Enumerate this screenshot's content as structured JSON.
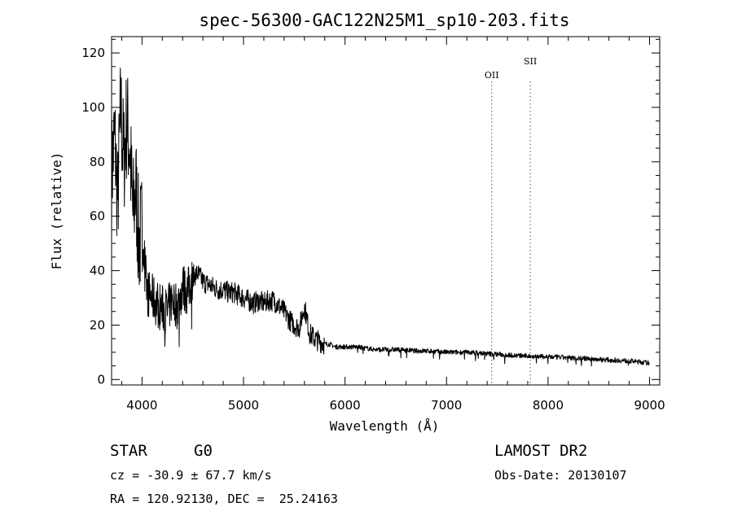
{
  "chart_data": {
    "type": "line",
    "title": "spec-56300-GAC122N25M1_sp10-203.fits",
    "xlabel": "Wavelength (Å)",
    "ylabel": "Flux (relative)",
    "xlim": [
      3700,
      9100
    ],
    "ylim": [
      -2,
      126
    ],
    "xticks": [
      4000,
      5000,
      6000,
      7000,
      8000,
      9000
    ],
    "yticks": [
      0,
      20,
      40,
      60,
      80,
      100,
      120
    ],
    "grid": false,
    "lines": [
      {
        "label": "OII",
        "x": 7445
      },
      {
        "label": "SII",
        "x": 7825
      }
    ],
    "series": [
      {
        "x": [
          3700,
          3730,
          3760,
          3790,
          3820,
          3850,
          3880,
          3910,
          3940,
          3970,
          4000,
          4050,
          4100,
          4150,
          4200,
          4250,
          4300,
          4350,
          4400,
          4450,
          4500,
          4550,
          4600,
          4650,
          4700,
          4750,
          4800,
          4850,
          4900,
          4950,
          5000,
          5050,
          5100,
          5150,
          5200,
          5250,
          5300,
          5350,
          5400,
          5450,
          5500,
          5550,
          5600,
          5650,
          5700,
          5750,
          5800,
          5850,
          5900,
          5950,
          6000,
          6100,
          6200,
          6300,
          6400,
          6500,
          6600,
          6700,
          6800,
          6900,
          7000,
          7100,
          7200,
          7300,
          7400,
          7500,
          7600,
          7700,
          7800,
          7900,
          8000,
          8100,
          8200,
          8300,
          8400,
          8500,
          8600,
          8700,
          8800,
          8900,
          9000
        ],
        "values": [
          75,
          90,
          65,
          100,
          80,
          95,
          85,
          60,
          70,
          50,
          55,
          32,
          30,
          28,
          26,
          25,
          30,
          27,
          34,
          32,
          38,
          39,
          36,
          35,
          34,
          33,
          33,
          32,
          32,
          31,
          30,
          29,
          28,
          29,
          28,
          29,
          29,
          27,
          25,
          22,
          20,
          19,
          27,
          17,
          15,
          14,
          13,
          13,
          12,
          12,
          12,
          12,
          11.5,
          11,
          11,
          11,
          10.8,
          10.5,
          10.5,
          10.3,
          10,
          10,
          10,
          9.8,
          9.5,
          9.3,
          9,
          8.8,
          8.6,
          8.5,
          8.3,
          8.2,
          8,
          7.8,
          7.6,
          7.4,
          7.2,
          7,
          6.8,
          6.5,
          6
        ]
      }
    ]
  },
  "info": {
    "object_class": "STAR",
    "subclass": "G0",
    "survey": "LAMOST DR2",
    "cz": "cz = -30.9 ± 67.7 km/s",
    "obs_date": "Obs-Date: 20130107",
    "coords": "RA = 120.92130, DEC =  25.24163"
  }
}
